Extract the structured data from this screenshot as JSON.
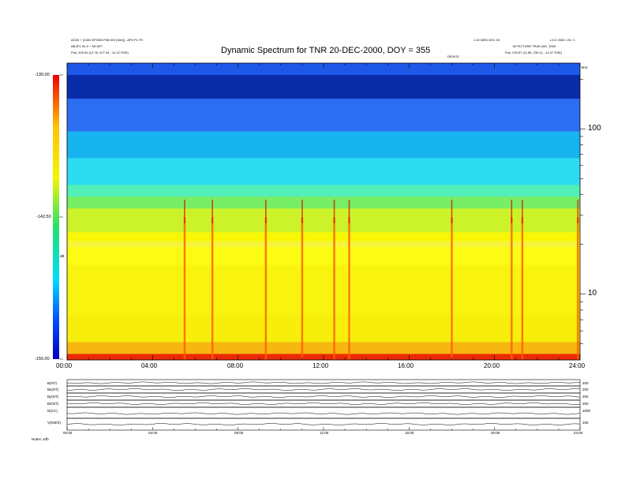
{
  "header": {
    "left_line1": "AG30 + [C000 EPOB0 P08 003 (Vert)] - AP0 P1 P0",
    "left_line2": "AB [P1 N1.0 + N0.0ET",
    "left_line3": "Pos: 225.04 (12.78, 227.04, -14.12 GSE)",
    "right_line1a": "1.10 WED DEC 00",
    "right_line1b": "L3 D 2000 / 20 / 1",
    "right_line2": "60 PICTURE TRUE (M1, 3000",
    "right_line3": "Pos: 230.57 (11.85, 230.11, -14.47 GSE)",
    "center_tag": "DEVICE"
  },
  "chart_data": {
    "type": "heatmap",
    "title": "Dynamic Spectrum for TNR 20-DEC-2000, DOY = 355",
    "x_ticks": [
      "00:00",
      "04:00",
      "08:00",
      "12:00",
      "16:00",
      "20:00",
      "24:00"
    ],
    "x_range_hours": [
      0,
      24
    ],
    "y_axis_right": {
      "scale": "log",
      "range_khz": [
        4,
        250
      ],
      "major_ticks": [
        10,
        100
      ],
      "unit": "kHz"
    },
    "colorbar": {
      "ticks": [
        "-130.00",
        "-142.50",
        "-155.00"
      ],
      "range": [
        -155,
        -130
      ],
      "label": "dB",
      "colors": [
        "#0000c0",
        "#0050ff",
        "#00ddff",
        "#22e070",
        "#f5f500",
        "#ffc000",
        "#ee0000"
      ]
    },
    "band_colors_top_to_bottom": [
      "#1e58e8",
      "#0a2ca8",
      "#2c6ef2",
      "#18b4f0",
      "#2edcf2",
      "#52f0b8",
      "#78ee64",
      "#ccf22a",
      "#f7f706",
      "#f6f43a",
      "#fbfb14",
      "#f8f410",
      "#f7ee0c",
      "#f7b610",
      "#ec2a08"
    ],
    "events_hours": [
      5.5,
      6.8,
      9.3,
      11.0,
      12.5,
      13.2,
      18.0,
      20.8,
      21.3,
      23.9
    ],
    "panel_x_ticks": [
      "00:00",
      "04:00",
      "08:00",
      "12:00",
      "16:00",
      "20:00",
      "24:00"
    ],
    "panels": [
      {
        "label": "B(NT)",
        "scale": "200"
      },
      {
        "label": "Bx(NT)",
        "scale": "200"
      },
      {
        "label": "By(NT)",
        "scale": "200"
      },
      {
        "label": "Bz(NT)",
        "scale": "200"
      },
      {
        "label": "N(CC)",
        "scale": "1000"
      },
      {
        "label": "V(KM/S)",
        "scale": "100"
      }
    ]
  },
  "footer": {
    "note": "Notes: srfb"
  }
}
